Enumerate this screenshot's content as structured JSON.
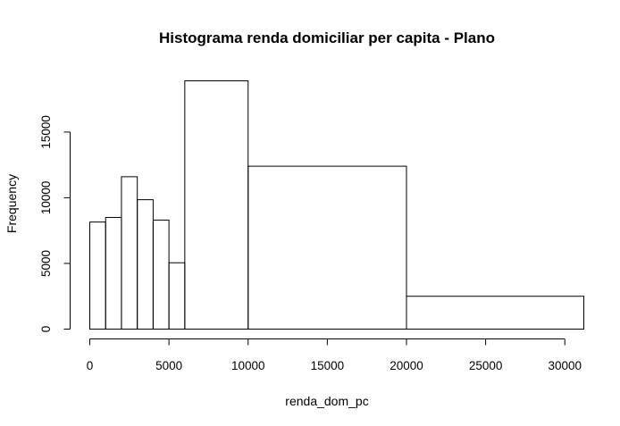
{
  "chart_data": {
    "type": "bar",
    "title": "Histograma renda domiciliar per capita - Plano",
    "xlabel": "renda_dom_pc",
    "ylabel": "Frequency",
    "xlim": [
      0,
      31200
    ],
    "ylim": [
      0,
      19000
    ],
    "x_ticks": [
      0,
      5000,
      10000,
      15000,
      20000,
      25000,
      30000
    ],
    "x_tick_labels": [
      "0",
      "5000",
      "10000",
      "15000",
      "20000",
      "25000",
      "30000"
    ],
    "y_ticks": [
      0,
      5000,
      10000,
      15000
    ],
    "y_tick_labels": [
      "0",
      "5000",
      "10000",
      "15000"
    ],
    "grid": false,
    "bins": [
      {
        "from": 0,
        "to": 1000,
        "count": 8150
      },
      {
        "from": 1000,
        "to": 2000,
        "count": 8500
      },
      {
        "from": 2000,
        "to": 3000,
        "count": 11600
      },
      {
        "from": 3000,
        "to": 4000,
        "count": 9850
      },
      {
        "from": 4000,
        "to": 5000,
        "count": 8300
      },
      {
        "from": 5000,
        "to": 6000,
        "count": 5050
      },
      {
        "from": 6000,
        "to": 10000,
        "count": 18900
      },
      {
        "from": 10000,
        "to": 20000,
        "count": 12400
      },
      {
        "from": 20000,
        "to": 31200,
        "count": 2500
      }
    ]
  }
}
